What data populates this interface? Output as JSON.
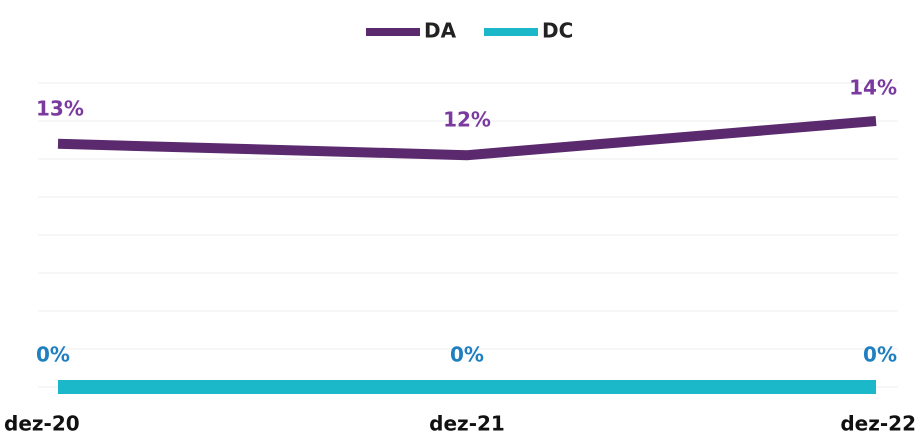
{
  "chart_data": {
    "type": "line",
    "categories": [
      "dez-20",
      "dez-21",
      "dez-22"
    ],
    "series": [
      {
        "name": "DA",
        "color": "#5b2a6e",
        "label_color": "#7b3aa0",
        "values": [
          12.8,
          12.2,
          14.0
        ],
        "value_labels": [
          "13%",
          "12%",
          "14%"
        ]
      },
      {
        "name": "DC",
        "color": "#1bb8c9",
        "label_color": "#1f7fc1",
        "values": [
          0,
          0,
          0
        ],
        "value_labels": [
          "0%",
          "0%",
          "0%"
        ]
      }
    ],
    "ylim": [
      0,
      16
    ],
    "yticks": [
      0,
      2,
      4,
      6,
      8,
      10,
      12,
      14,
      16
    ],
    "grid": true,
    "legend": "top"
  }
}
